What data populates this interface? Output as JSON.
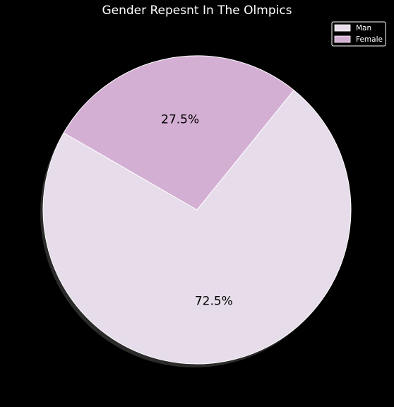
{
  "chart_data": {
    "type": "pie",
    "title": "Gender Repesnt In The Olmpics",
    "slices": [
      {
        "label": "Man",
        "value": 72.5,
        "pct_label": "72.5%",
        "color": "#e6dcea"
      },
      {
        "label": "Female",
        "value": 27.5,
        "pct_label": "27.5%",
        "color": "#d4afd4"
      }
    ],
    "legend": {
      "position": "top-right",
      "entries": [
        "Man",
        "Female"
      ]
    },
    "shadow": true,
    "background": "#000000",
    "edge_color": "#ffffff",
    "start_angle": 150
  }
}
